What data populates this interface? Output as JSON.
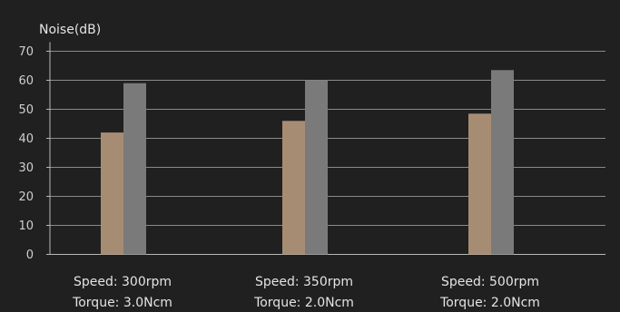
{
  "chart_data": {
    "type": "bar",
    "ylabel": "Noise(dB)",
    "ylim": [
      0,
      70
    ],
    "yticks": [
      0,
      10,
      20,
      30,
      40,
      50,
      60,
      70
    ],
    "grid": true,
    "categories": [
      {
        "line1": "Speed: 300rpm",
        "line2": "Torque: 3.0Ncm"
      },
      {
        "line1": "Speed: 350rpm",
        "line2": "Torque: 2.0Ncm"
      },
      {
        "line1": "Speed: 500rpm",
        "line2": "Torque: 2.0Ncm"
      }
    ],
    "series": [
      {
        "values": [
          42,
          46,
          48.5
        ],
        "color": "#a78c74"
      },
      {
        "values": [
          59,
          60,
          63.5
        ],
        "color": "#7a7a7a"
      }
    ]
  },
  "colors": {
    "background": "#202020",
    "grid": "#8a8a8a",
    "axis": "#b8b8b8"
  }
}
